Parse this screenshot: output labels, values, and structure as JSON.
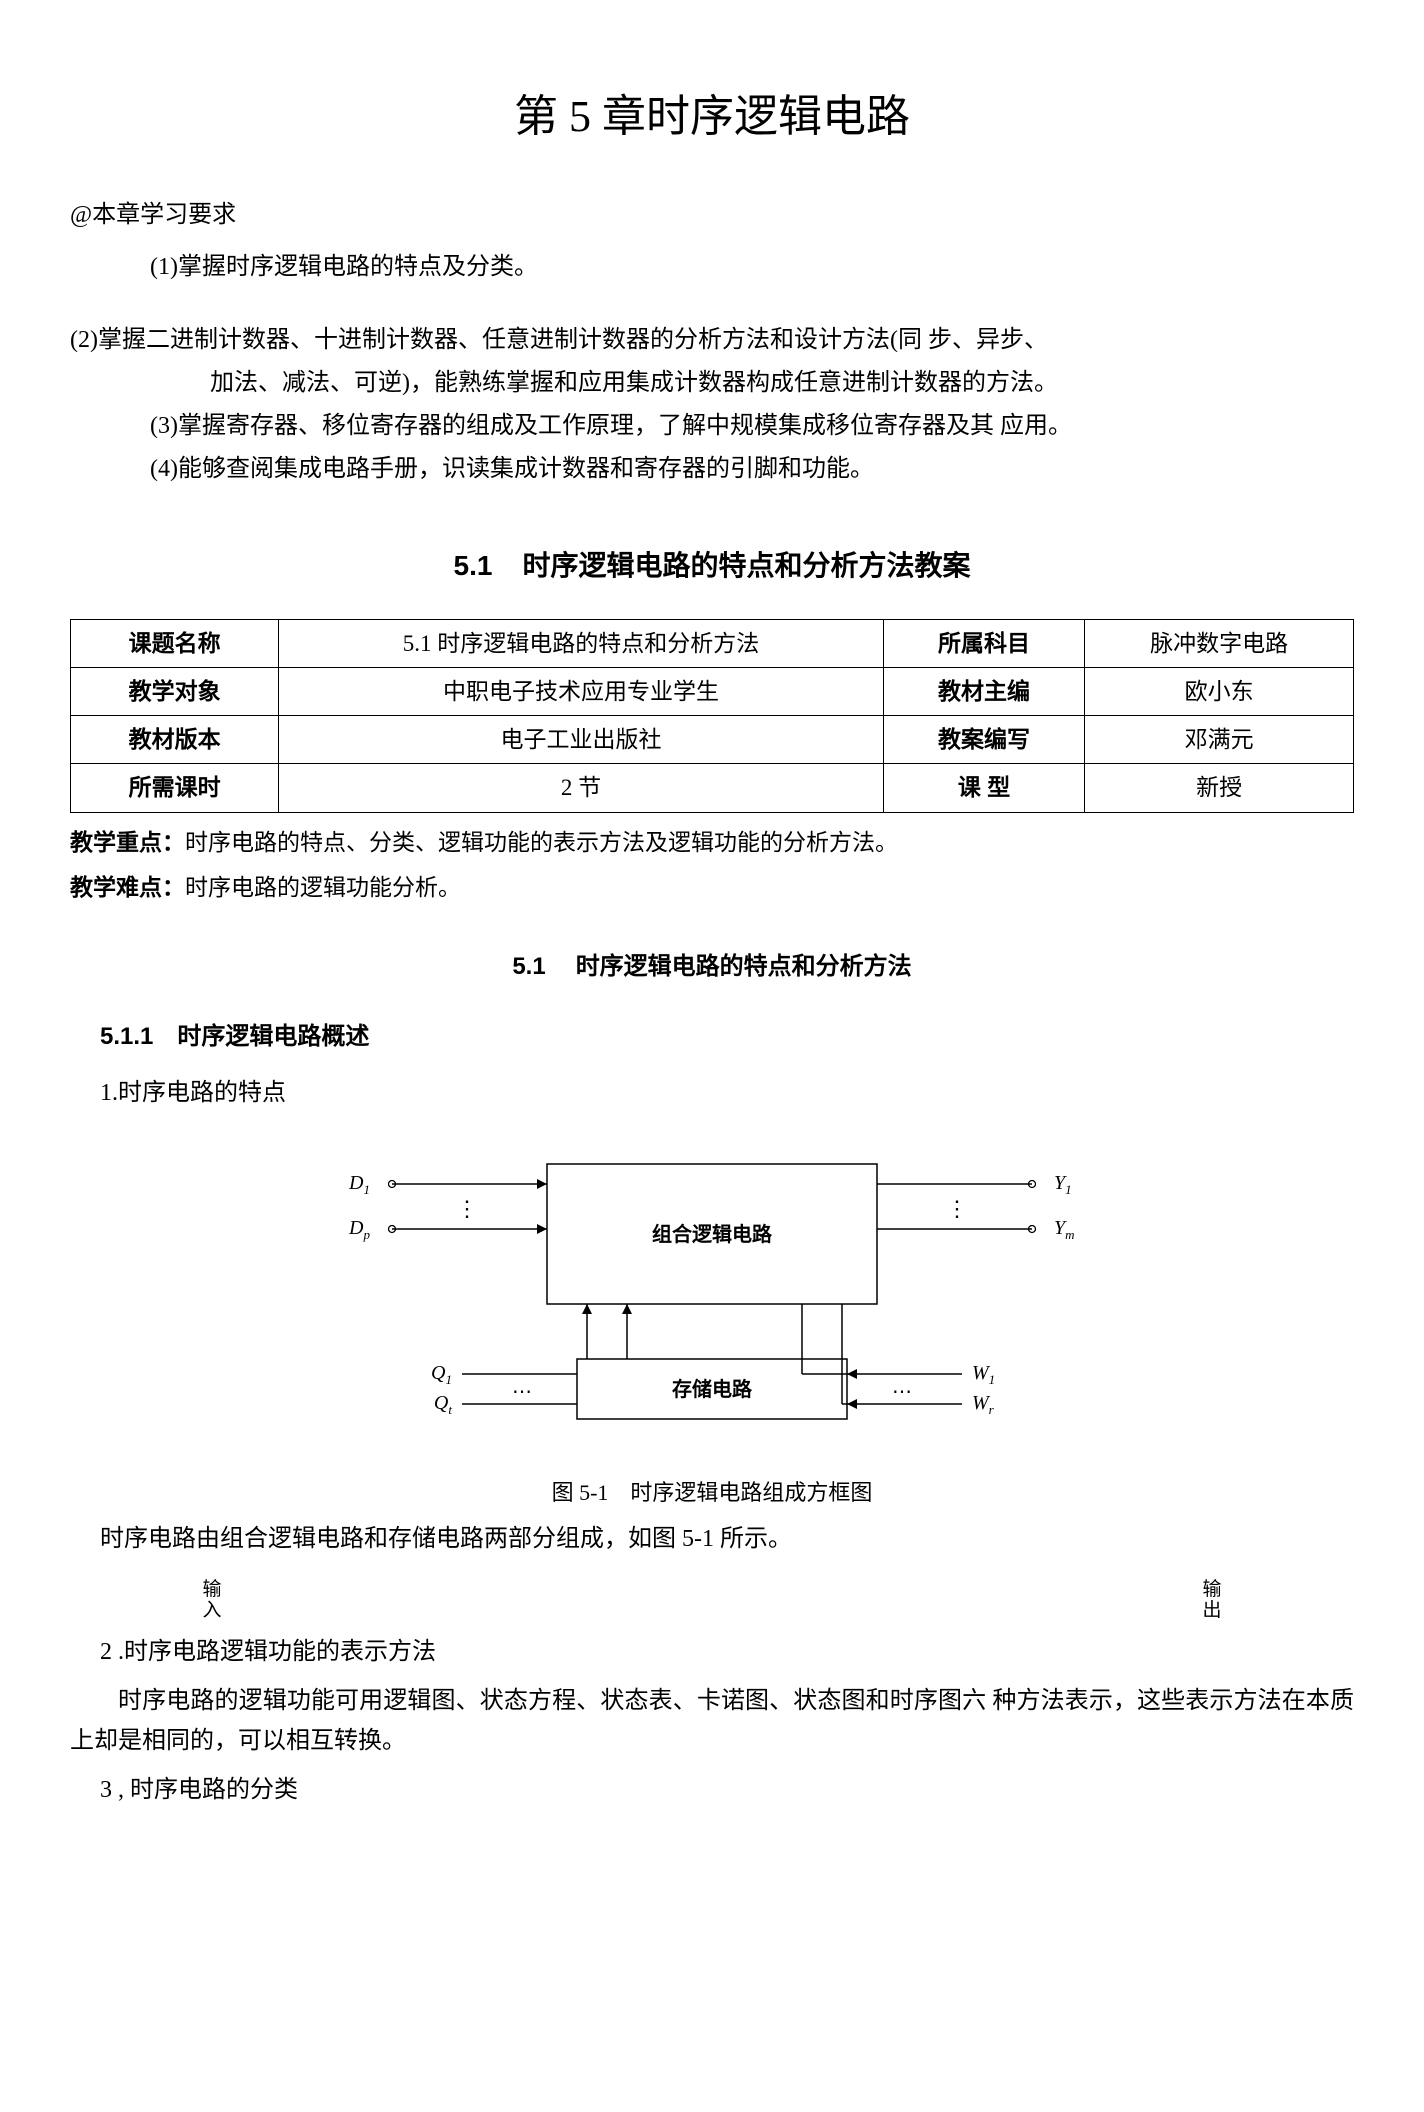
{
  "chapter_title": "第 5 章时序逻辑电路",
  "intro_marker": "@本章学习要求",
  "requirements": {
    "r1": "(1)掌握时序逻辑电路的特点及分类。",
    "r2a": "(2)掌握二进制计数器、十进制计数器、任意进制计数器的分析方法和设计方法(同 步、异步、",
    "r2b": "加法、减法、可逆)，能熟练掌握和应用集成计数器构成任意进制计数器的方法。",
    "r3": "(3)掌握寄存器、移位寄存器的组成及工作原理，了解中规模集成移位寄存器及其 应用。",
    "r4": "(4)能够查阅集成电路手册，识读集成计数器和寄存器的引脚和功能。"
  },
  "section": {
    "number": "5.1",
    "title": "时序逻辑电路的特点和分析方法教案"
  },
  "table": {
    "rows": [
      {
        "l1": "课题名称",
        "v1": "5.1 时序逻辑电路的特点和分析方法",
        "l2": "所属科目",
        "v2": "脉冲数字电路"
      },
      {
        "l1": "教学对象",
        "v1": "中职电子技术应用专业学生",
        "l2": "教材主编",
        "v2": "欧小东"
      },
      {
        "l1": "教材版本",
        "v1": "电子工业出版社",
        "l2": "教案编写",
        "v2": "邓满元"
      },
      {
        "l1": "所需课时",
        "v1": "2 节",
        "l2": "课 型",
        "v2": "新授"
      }
    ]
  },
  "notes": {
    "focus_label": "教学重点：",
    "focus_text": "时序电路的特点、分类、逻辑功能的表示方法及逻辑功能的分析方法。",
    "difficulty_label": "教学难点：",
    "difficulty_text": "时序电路的逻辑功能分析。"
  },
  "subsection": {
    "number": "5.1",
    "title": "时序逻辑电路的特点和分析方法"
  },
  "subsub": {
    "number_title": "5.1.1　时序逻辑电路概述",
    "p1": "1.时序电路的特点"
  },
  "diagram": {
    "box1_label": "组合逻辑电路",
    "box2_label": "存储电路",
    "inputs": {
      "D1": "D",
      "D1_sub": "1",
      "Dp": "D",
      "Dp_sub": "p"
    },
    "outputs": {
      "Y1": "Y",
      "Y1_sub": "1",
      "Ym": "Y",
      "Ym_sub": "m"
    },
    "state_out": {
      "Q1": "Q",
      "Q1_sub": "1",
      "Qt": "Q",
      "Qt_sub": "t"
    },
    "excite": {
      "W1": "W",
      "W1_sub": "1",
      "Wr": "W",
      "Wr_sub": "r"
    },
    "vdots": "⋮",
    "hdots": "⋯",
    "caption": "图 5-1　时序逻辑电路组成方框图",
    "colors": {
      "stroke": "#000000",
      "bg": "#ffffff"
    },
    "line_width": 1.5
  },
  "body": {
    "after_diagram": "时序电路由组合逻辑电路和存储电路两部分组成，如图 5-1 所示。",
    "input_label": "输入",
    "output_label": "输出",
    "p2": "2 .时序电路逻辑功能的表示方法",
    "p2_text": "时序电路的逻辑功能可用逻辑图、状态方程、状态表、卡诺图、状态图和时序图六 种方法表示，这些表示方法在本质上却是相同的，可以相互转换。",
    "p3": "3 , 时序电路的分类"
  }
}
